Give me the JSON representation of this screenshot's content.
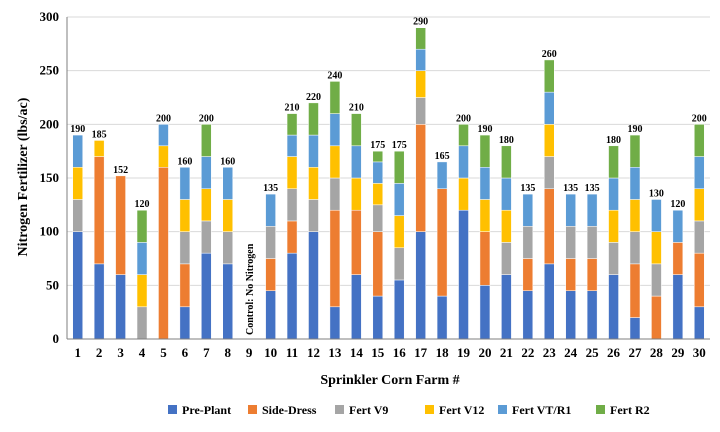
{
  "chart_data": {
    "type": "bar",
    "stacked": true,
    "xlabel": "Sprinkler Corn Farm #",
    "ylabel": "Nitrogen Fertilizer (lbs/ac)",
    "ylim": [
      0,
      300
    ],
    "yticks": [
      0,
      50,
      100,
      150,
      200,
      250,
      300
    ],
    "grid": true,
    "legend_position": "bottom",
    "categories": [
      "1",
      "2",
      "3",
      "4",
      "5",
      "6",
      "7",
      "8",
      "9",
      "10",
      "11",
      "12",
      "13",
      "14",
      "15",
      "16",
      "17",
      "18",
      "19",
      "20",
      "21",
      "22",
      "23",
      "24",
      "25",
      "26",
      "27",
      "28",
      "29",
      "30"
    ],
    "series": [
      {
        "name": "Pre-Plant",
        "color": "#4472c4",
        "values": [
          100,
          70,
          60,
          0,
          0,
          30,
          80,
          70,
          0,
          45,
          80,
          100,
          30,
          60,
          40,
          55,
          100,
          40,
          120,
          50,
          60,
          45,
          70,
          45,
          45,
          60,
          20,
          0,
          60,
          30
        ]
      },
      {
        "name": "Side-Dress",
        "color": "#ed7d31",
        "values": [
          0,
          100,
          92,
          0,
          160,
          40,
          0,
          0,
          0,
          30,
          30,
          0,
          90,
          60,
          60,
          0,
          100,
          100,
          0,
          50,
          0,
          30,
          70,
          30,
          30,
          0,
          50,
          40,
          30,
          50
        ]
      },
      {
        "name": "Fert V9",
        "color": "#a5a5a5",
        "values": [
          30,
          0,
          0,
          30,
          0,
          30,
          30,
          30,
          0,
          30,
          30,
          30,
          30,
          0,
          25,
          30,
          25,
          0,
          0,
          0,
          30,
          30,
          30,
          30,
          30,
          30,
          30,
          30,
          0,
          30
        ]
      },
      {
        "name": "Fert V12",
        "color": "#ffc000",
        "values": [
          30,
          15,
          0,
          30,
          20,
          30,
          30,
          30,
          0,
          0,
          30,
          30,
          30,
          30,
          20,
          30,
          25,
          0,
          30,
          30,
          30,
          0,
          30,
          0,
          0,
          30,
          30,
          30,
          0,
          30
        ]
      },
      {
        "name": "Fert VT/R1",
        "color": "#5b9bd5",
        "values": [
          30,
          0,
          0,
          30,
          20,
          30,
          30,
          30,
          0,
          30,
          20,
          30,
          30,
          30,
          20,
          30,
          20,
          25,
          30,
          30,
          30,
          30,
          30,
          30,
          30,
          30,
          30,
          30,
          30,
          30
        ]
      },
      {
        "name": "Fert R2",
        "color": "#70ad47",
        "values": [
          0,
          0,
          0,
          30,
          0,
          0,
          30,
          0,
          0,
          0,
          20,
          30,
          30,
          30,
          10,
          30,
          20,
          0,
          20,
          30,
          30,
          0,
          30,
          0,
          0,
          30,
          30,
          0,
          0,
          30
        ]
      }
    ],
    "totals": [
      190,
      185,
      152,
      120,
      200,
      160,
      200,
      160,
      null,
      135,
      210,
      220,
      240,
      210,
      175,
      175,
      290,
      165,
      200,
      190,
      180,
      135,
      260,
      135,
      135,
      180,
      190,
      130,
      120,
      200
    ],
    "annotations": [
      {
        "category": "9",
        "text": "Control: No Nitrogen"
      }
    ]
  }
}
